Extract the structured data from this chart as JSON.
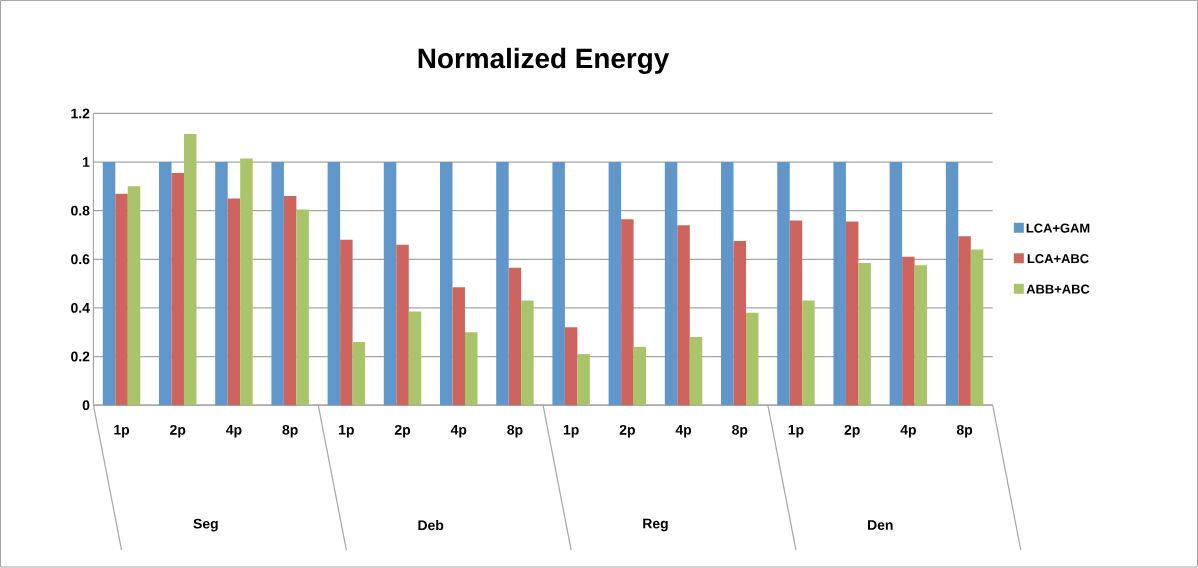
{
  "chart_data": {
    "type": "bar",
    "title": "Normalized Energy",
    "categories": [
      "1p",
      "2p",
      "4p",
      "8p",
      "1p",
      "2p",
      "4p",
      "8p",
      "1p",
      "2p",
      "4p",
      "8p",
      "1p",
      "2p",
      "4p",
      "8p"
    ],
    "series": [
      {
        "name": "LCA+GAM",
        "color": "#6096c9",
        "values": [
          1,
          1,
          1,
          1,
          1,
          1,
          1,
          1,
          1,
          1,
          1,
          1,
          1,
          1,
          1,
          1
        ]
      },
      {
        "name": "LCA+ABC",
        "color": "#cd655e",
        "values": [
          0.87,
          0.955,
          0.85,
          0.86,
          0.68,
          0.66,
          0.485,
          0.565,
          0.32,
          0.765,
          0.74,
          0.675,
          0.76,
          0.755,
          0.61,
          0.695
        ]
      },
      {
        "name": "ABB+ABC",
        "color": "#a9c46a",
        "values": [
          0.9,
          1.115,
          1.015,
          0.805,
          0.26,
          0.385,
          0.3,
          0.43,
          0.21,
          0.24,
          0.28,
          0.38,
          0.43,
          0.585,
          0.575,
          0.64
        ]
      }
    ],
    "annotations": [
      "Seg",
      "Deb",
      "Reg",
      "Den"
    ],
    "ylim": [
      0,
      1.2
    ],
    "yticks": [
      0,
      0.2,
      0.4,
      0.6,
      0.8,
      1,
      1.2
    ],
    "grid": "y",
    "legend": "right"
  }
}
